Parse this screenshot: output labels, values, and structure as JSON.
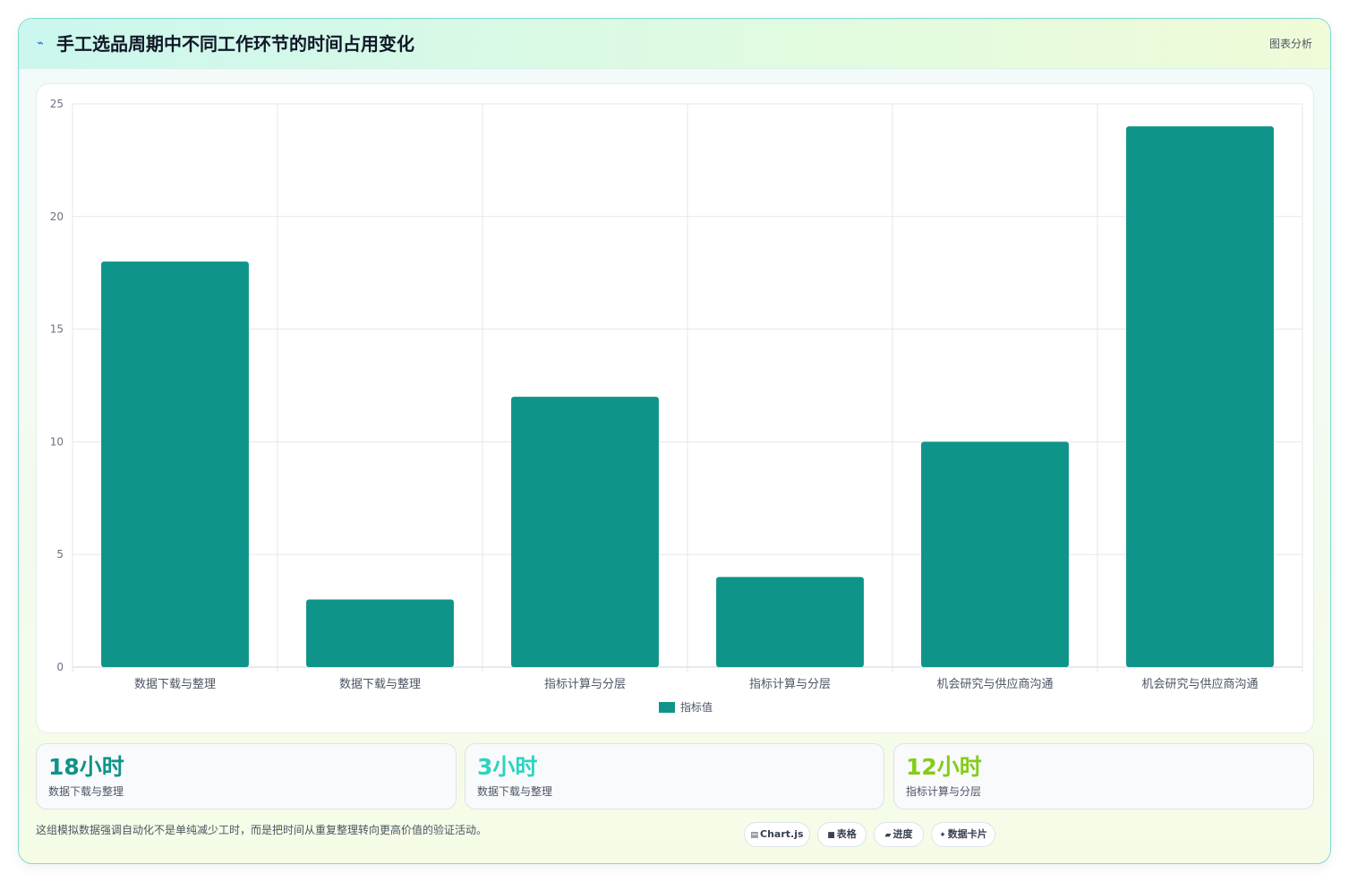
{
  "header": {
    "title": "手工选品周期中不同工作环节的时间占用变化",
    "badge": "图表分析",
    "icon": "sparkle-icon"
  },
  "chart_data": {
    "type": "bar",
    "categories": [
      "数据下载与整理",
      "数据下载与整理",
      "指标计算与分层",
      "指标计算与分层",
      "机会研究与供应商沟通",
      "机会研究与供应商沟通"
    ],
    "series": [
      {
        "name": "指标值",
        "values": [
          18,
          3,
          12,
          4,
          10,
          24
        ],
        "color": "#0e9488"
      }
    ],
    "yticks": [
      0,
      5,
      10,
      15,
      20,
      25
    ],
    "ylim": [
      0,
      25
    ],
    "grid": true,
    "legend_position": "bottom"
  },
  "stats": [
    {
      "value": "18小时",
      "label": "数据下载与整理",
      "color": "#0e9488"
    },
    {
      "value": "3小时",
      "label": "数据下载与整理",
      "color": "#2dd4bf"
    },
    {
      "value": "12小时",
      "label": "指标计算与分层",
      "color": "#84cc16"
    }
  ],
  "footnote": "这组模拟数据强调自动化不是单纯减少工时，而是把时间从重复整理转向更高价值的验证活动。",
  "chips": [
    {
      "glyph": "▤",
      "label": "Chart.js",
      "icon": "chart-icon"
    },
    {
      "glyph": "■",
      "label": "表格",
      "icon": "table-icon"
    },
    {
      "glyph": "▰",
      "label": "进度",
      "icon": "progress-icon"
    },
    {
      "glyph": "✦",
      "label": "数据卡片",
      "icon": "card-icon"
    }
  ]
}
